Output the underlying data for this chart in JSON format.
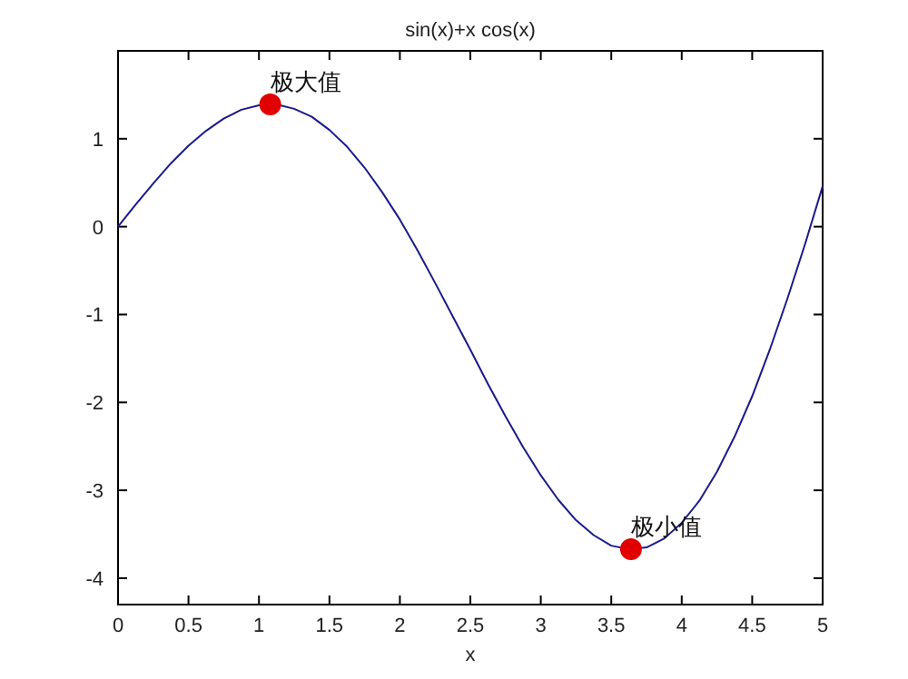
{
  "chart_data": {
    "type": "line",
    "title": "sin(x)+x cos(x)",
    "xlabel": "x",
    "xlim": [
      0,
      5
    ],
    "ylim": [
      -4.3,
      2
    ],
    "xticks": [
      0,
      0.5,
      1,
      1.5,
      2,
      2.5,
      3,
      3.5,
      4,
      4.5,
      5
    ],
    "yticks": [
      -4,
      -3,
      -2,
      -1,
      0,
      1
    ],
    "grid": false,
    "series": [
      {
        "color": "#1a1a8c",
        "marker": "none",
        "x": [
          0,
          0.125,
          0.25,
          0.375,
          0.5,
          0.625,
          0.75,
          0.875,
          1,
          1.125,
          1.25,
          1.375,
          1.5,
          1.625,
          1.75,
          1.875,
          2,
          2.125,
          2.25,
          2.375,
          2.5,
          2.625,
          2.75,
          2.875,
          3,
          3.125,
          3.25,
          3.375,
          3.5,
          3.625,
          3.75,
          3.875,
          4,
          4.125,
          4.25,
          4.375,
          4.5,
          4.625,
          4.75,
          4.875,
          5
        ],
        "values": [
          0,
          0.25,
          0.49,
          0.72,
          0.92,
          1.09,
          1.23,
          1.33,
          1.38,
          1.39,
          1.34,
          1.25,
          1.1,
          0.91,
          0.67,
          0.39,
          0.08,
          -0.27,
          -0.64,
          -1.02,
          -1.4,
          -1.79,
          -2.16,
          -2.51,
          -2.83,
          -3.11,
          -3.34,
          -3.51,
          -3.63,
          -3.67,
          -3.65,
          -3.55,
          -3.37,
          -3.12,
          -2.79,
          -2.39,
          -1.93,
          -1.4,
          -0.82,
          -0.2,
          0.46
        ]
      },
      {
        "type": "scatter",
        "color": "#e00000",
        "marker": "circle",
        "x": [
          1.08,
          3.64
        ],
        "values": [
          1.39,
          -3.67
        ]
      }
    ],
    "annotations": [
      {
        "text": "极大值",
        "x": 1.08,
        "y": 1.39
      },
      {
        "text": "极小值",
        "x": 3.64,
        "y": -3.67
      }
    ]
  }
}
